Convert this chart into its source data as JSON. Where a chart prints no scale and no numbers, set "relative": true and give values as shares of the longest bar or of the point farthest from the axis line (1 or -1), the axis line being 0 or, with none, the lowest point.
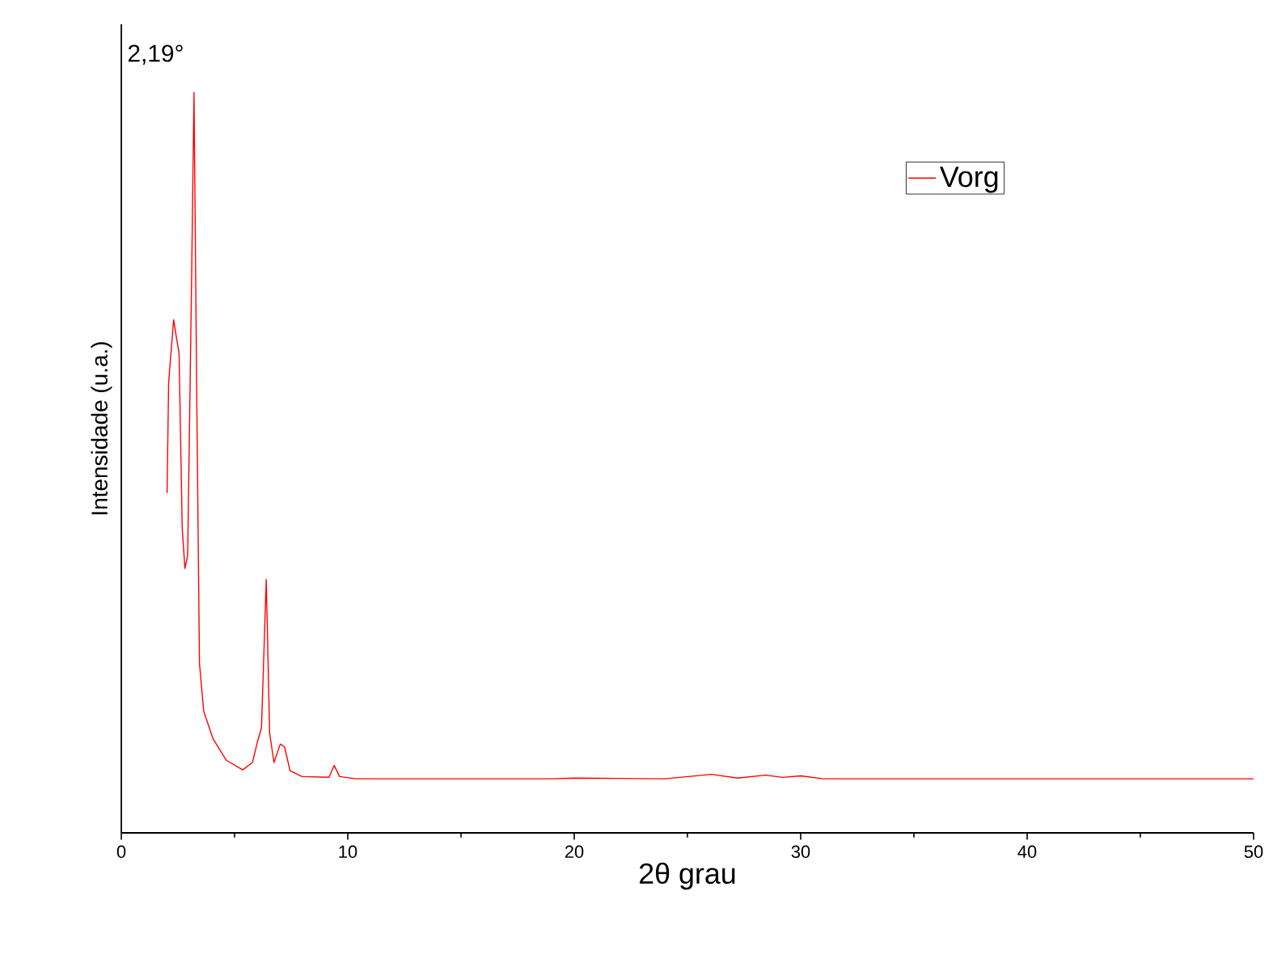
{
  "chart_data": {
    "type": "line",
    "relative": true,
    "xlabel": "2θ grau",
    "ylabel": "Intensidade (u.a.)",
    "annotations": [
      "2,19°"
    ],
    "xlim": [
      0,
      50
    ],
    "xticks": [
      0,
      10,
      20,
      30,
      40,
      50
    ],
    "tick_labels": "x",
    "legend": "top right",
    "grid": false,
    "series": [
      {
        "name": "Vorg",
        "color": "#ff0000",
        "x": [
          2.02,
          2.09,
          2.31,
          2.45,
          2.55,
          2.69,
          2.81,
          2.93,
          3.1,
          3.21,
          3.33,
          3.45,
          3.64,
          4.05,
          4.64,
          5.36,
          5.79,
          6.02,
          6.19,
          6.4,
          6.55,
          6.74,
          7.02,
          7.21,
          7.45,
          7.98,
          9.17,
          9.4,
          9.64,
          10.36,
          15,
          19,
          20,
          24,
          26.07,
          27.2,
          28.45,
          29.2,
          30.0,
          31,
          35,
          40,
          45,
          50
        ],
        "values": [
          0.459,
          0.608,
          0.693,
          0.666,
          0.648,
          0.411,
          0.357,
          0.375,
          0.739,
          1.0,
          0.594,
          0.229,
          0.164,
          0.127,
          0.098,
          0.085,
          0.095,
          0.124,
          0.142,
          0.342,
          0.135,
          0.095,
          0.12,
          0.116,
          0.084,
          0.076,
          0.075,
          0.091,
          0.076,
          0.073,
          0.073,
          0.073,
          0.074,
          0.073,
          0.079,
          0.074,
          0.078,
          0.075,
          0.077,
          0.073,
          0.073,
          0.073,
          0.073,
          0.073
        ]
      }
    ]
  }
}
